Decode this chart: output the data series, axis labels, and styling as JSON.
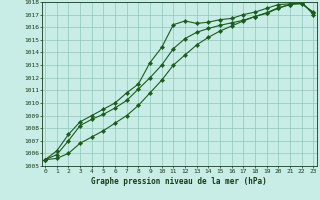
{
  "xlabel": "Graphe pression niveau de la mer (hPa)",
  "hours": [
    0,
    1,
    2,
    3,
    4,
    5,
    6,
    7,
    8,
    9,
    10,
    11,
    12,
    13,
    14,
    15,
    16,
    17,
    18,
    19,
    20,
    21,
    22,
    23
  ],
  "line1": [
    1005.5,
    1006.2,
    1007.5,
    1008.5,
    1009.0,
    1009.5,
    1010.0,
    1010.8,
    1011.5,
    1013.2,
    1014.4,
    1016.2,
    1016.5,
    1016.3,
    1016.4,
    1016.6,
    1016.7,
    1017.0,
    1017.2,
    1017.5,
    1017.8,
    1017.85,
    1017.85,
    1017.2
  ],
  "line2": [
    1005.5,
    1005.9,
    1007.0,
    1008.2,
    1008.7,
    1009.1,
    1009.6,
    1010.2,
    1011.1,
    1012.0,
    1013.0,
    1014.3,
    1015.1,
    1015.6,
    1015.9,
    1016.15,
    1016.35,
    1016.55,
    1016.85,
    1017.15,
    1017.55,
    1017.8,
    1017.9,
    1017.15
  ],
  "line3": [
    1005.5,
    1005.6,
    1006.0,
    1006.8,
    1007.3,
    1007.8,
    1008.4,
    1009.0,
    1009.8,
    1010.8,
    1011.8,
    1013.0,
    1013.8,
    1014.6,
    1015.2,
    1015.7,
    1016.1,
    1016.5,
    1016.85,
    1017.1,
    1017.5,
    1017.8,
    1018.0,
    1017.0
  ],
  "ylim_min": 1005,
  "ylim_max": 1018,
  "yticks": [
    1005,
    1006,
    1007,
    1008,
    1009,
    1010,
    1011,
    1012,
    1013,
    1014,
    1015,
    1016,
    1017,
    1018
  ],
  "line_color": "#1a5c1a",
  "bg_color": "#c8ede6",
  "grid_color": "#8cc8b8",
  "text_color": "#1a3a1a",
  "marker": "D",
  "marker_size": 2.2,
  "linewidth": 0.8
}
